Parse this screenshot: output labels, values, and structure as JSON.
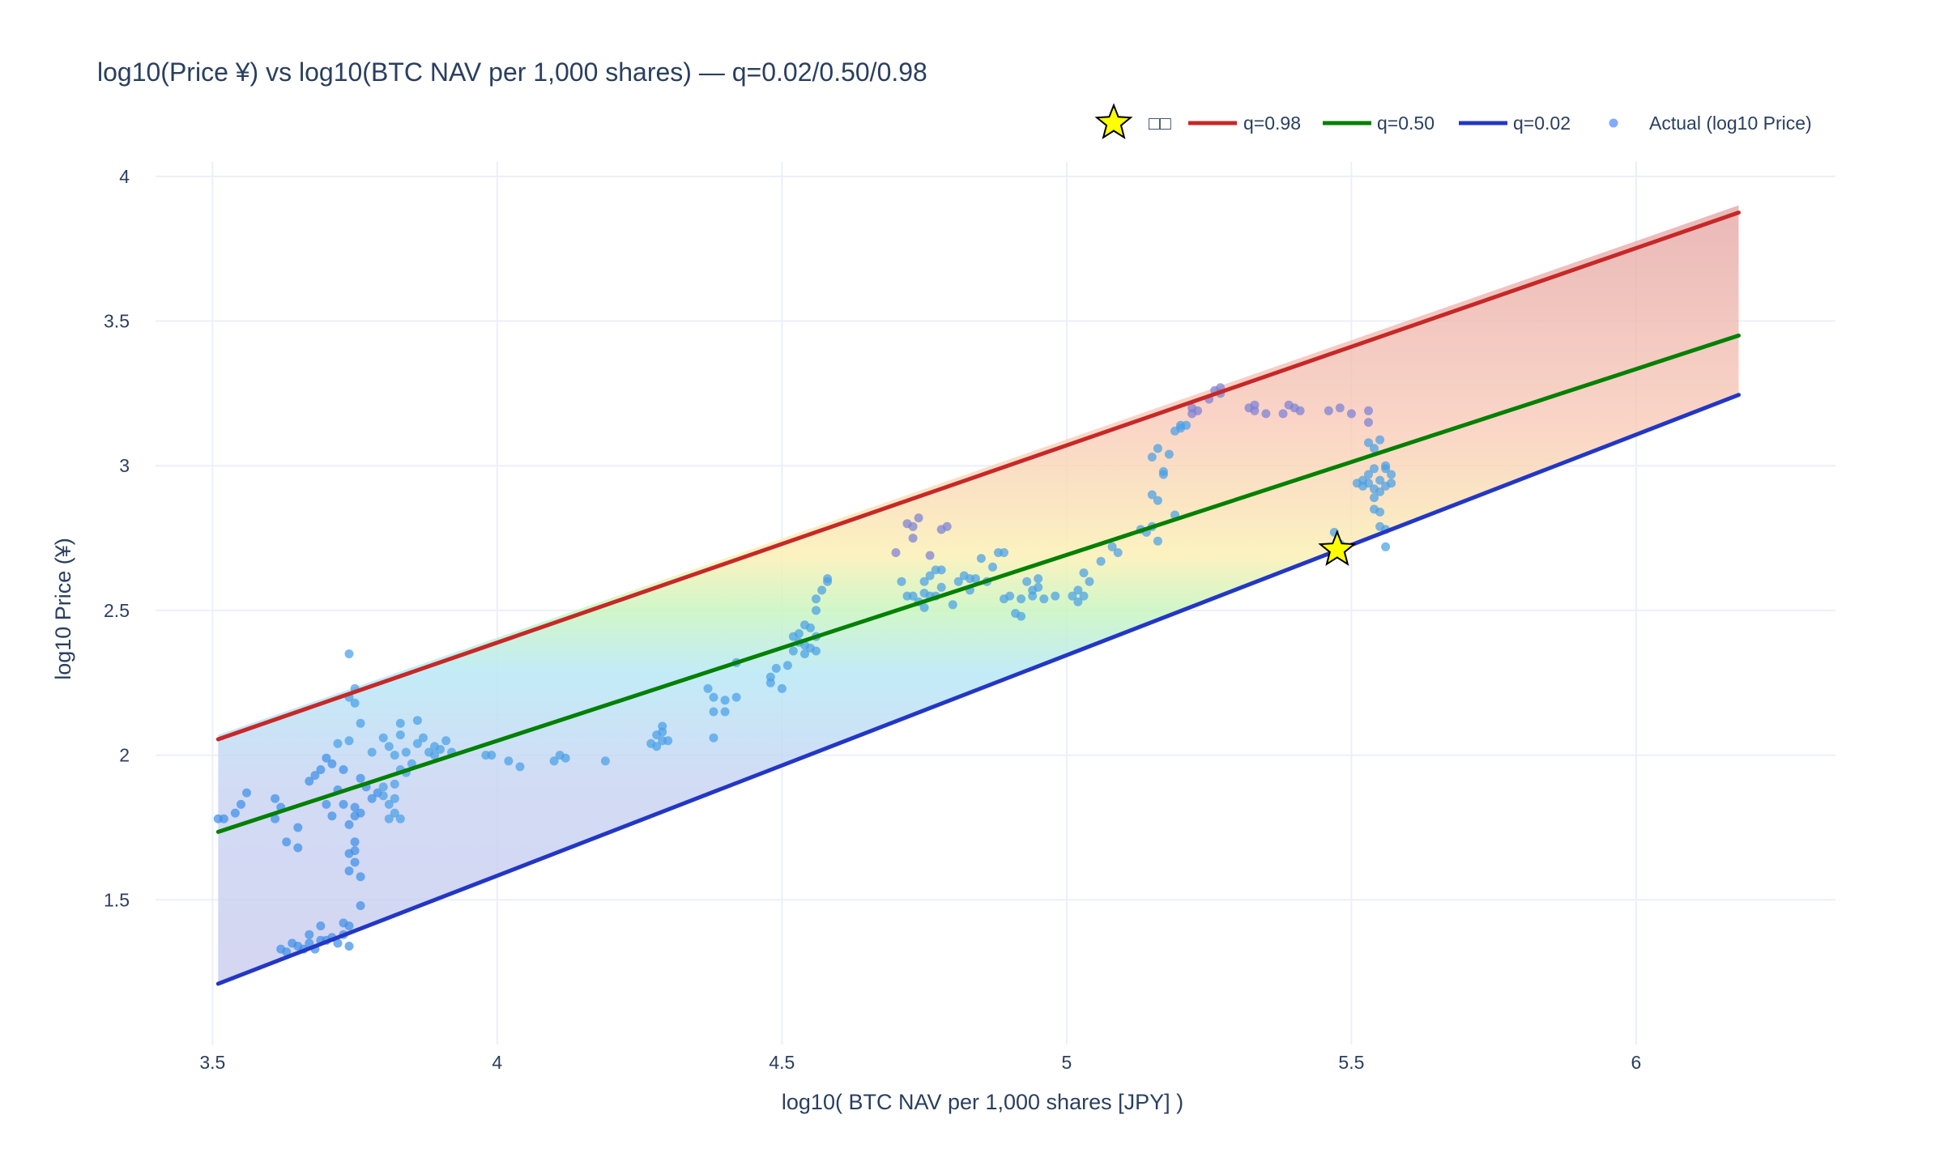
{
  "chart_data": {
    "type": "scatter",
    "title": "log10(Price ¥) vs log10(BTC NAV per 1,000 shares) — q=0.02/0.50/0.98",
    "xlabel": "log10( BTC NAV per 1,000 shares [JPY] )",
    "ylabel": "log10 Price (¥)",
    "xlim": [
      3.4,
      6.35
    ],
    "ylim": [
      1.0,
      4.05
    ],
    "xticks": [
      3.5,
      4,
      4.5,
      5,
      5.5,
      6
    ],
    "xtick_labels": [
      "3.5",
      "4",
      "4.5",
      "5",
      "5.5",
      "6"
    ],
    "yticks": [
      1.5,
      2,
      2.5,
      3,
      3.5,
      4
    ],
    "ytick_labels": [
      "1.5",
      "2",
      "2.5",
      "3",
      "3.5",
      "4"
    ],
    "grid": true,
    "legend_position": "top-right",
    "legend": [
      {
        "name": "□□",
        "kind": "star",
        "color": "#ffff00"
      },
      {
        "name": "q=0.98",
        "kind": "line",
        "color": "#c62828"
      },
      {
        "name": "q=0.50",
        "kind": "line",
        "color": "#008000"
      },
      {
        "name": "q=0.02",
        "kind": "line",
        "color": "#2337c4"
      },
      {
        "name": "Actual (log10 Price)",
        "kind": "marker",
        "color": "#6395ff"
      }
    ],
    "band": {
      "x": [
        3.51,
        6.18
      ],
      "y_low": [
        1.21,
        3.24
      ],
      "y_high": [
        2.07,
        3.9
      ]
    },
    "lines": [
      {
        "name": "q=0.98",
        "color": "#c62828",
        "x": [
          3.51,
          6.18
        ],
        "y": [
          2.055,
          3.875
        ]
      },
      {
        "name": "q=0.50",
        "color": "#008000",
        "x": [
          3.51,
          6.18
        ],
        "y": [
          1.735,
          3.45
        ]
      },
      {
        "name": "q=0.02",
        "color": "#2337c4",
        "x": [
          3.51,
          6.18
        ],
        "y": [
          1.21,
          3.245
        ]
      }
    ],
    "current_point": {
      "name": "□□",
      "x": 5.475,
      "y": 2.71
    },
    "series": [
      {
        "name": "Actual (log10 Price)",
        "points": [
          [
            3.51,
            1.78
          ],
          [
            3.52,
            1.78
          ],
          [
            3.54,
            1.8
          ],
          [
            3.55,
            1.83
          ],
          [
            3.56,
            1.87
          ],
          [
            3.61,
            1.85
          ],
          [
            3.61,
            1.78
          ],
          [
            3.62,
            1.82
          ],
          [
            3.63,
            1.7
          ],
          [
            3.65,
            1.68
          ],
          [
            3.65,
            1.75
          ],
          [
            3.62,
            1.33
          ],
          [
            3.63,
            1.32
          ],
          [
            3.64,
            1.35
          ],
          [
            3.65,
            1.34
          ],
          [
            3.66,
            1.33
          ],
          [
            3.67,
            1.35
          ],
          [
            3.67,
            1.38
          ],
          [
            3.68,
            1.33
          ],
          [
            3.69,
            1.36
          ],
          [
            3.69,
            1.41
          ],
          [
            3.7,
            1.36
          ],
          [
            3.71,
            1.37
          ],
          [
            3.72,
            1.35
          ],
          [
            3.73,
            1.38
          ],
          [
            3.73,
            1.42
          ],
          [
            3.74,
            1.41
          ],
          [
            3.74,
            1.34
          ],
          [
            3.76,
            1.48
          ],
          [
            3.67,
            1.91
          ],
          [
            3.68,
            1.93
          ],
          [
            3.69,
            1.95
          ],
          [
            3.7,
            1.99
          ],
          [
            3.71,
            1.97
          ],
          [
            3.72,
            2.04
          ],
          [
            3.73,
            1.95
          ],
          [
            3.74,
            2.05
          ],
          [
            3.7,
            1.83
          ],
          [
            3.71,
            1.79
          ],
          [
            3.72,
            1.88
          ],
          [
            3.73,
            1.83
          ],
          [
            3.74,
            1.76
          ],
          [
            3.75,
            1.79
          ],
          [
            3.75,
            1.82
          ],
          [
            3.76,
            1.8
          ],
          [
            3.77,
            1.89
          ],
          [
            3.76,
            1.92
          ],
          [
            3.74,
            1.66
          ],
          [
            3.75,
            1.7
          ],
          [
            3.75,
            1.63
          ],
          [
            3.74,
            1.6
          ],
          [
            3.75,
            1.67
          ],
          [
            3.76,
            1.58
          ],
          [
            3.74,
            2.35
          ],
          [
            3.75,
            2.23
          ],
          [
            3.75,
            2.18
          ],
          [
            3.76,
            2.11
          ],
          [
            3.74,
            2.2
          ],
          [
            3.78,
            1.85
          ],
          [
            3.79,
            1.87
          ],
          [
            3.8,
            1.89
          ],
          [
            3.8,
            1.86
          ],
          [
            3.81,
            1.83
          ],
          [
            3.82,
            1.8
          ],
          [
            3.81,
            1.78
          ],
          [
            3.82,
            1.85
          ],
          [
            3.83,
            1.78
          ],
          [
            3.84,
            1.94
          ],
          [
            3.82,
            1.9
          ],
          [
            3.83,
            1.95
          ],
          [
            3.78,
            2.01
          ],
          [
            3.8,
            2.06
          ],
          [
            3.81,
            2.03
          ],
          [
            3.82,
            2.0
          ],
          [
            3.83,
            2.07
          ],
          [
            3.83,
            2.11
          ],
          [
            3.84,
            2.01
          ],
          [
            3.85,
            1.97
          ],
          [
            3.86,
            2.04
          ],
          [
            3.86,
            2.12
          ],
          [
            3.87,
            2.06
          ],
          [
            3.88,
            2.01
          ],
          [
            3.89,
            2.0
          ],
          [
            3.89,
            2.03
          ],
          [
            3.9,
            2.02
          ],
          [
            3.91,
            2.05
          ],
          [
            3.92,
            2.01
          ],
          [
            3.98,
            2.0
          ],
          [
            3.99,
            2.0
          ],
          [
            4.02,
            1.98
          ],
          [
            4.04,
            1.96
          ],
          [
            4.1,
            1.98
          ],
          [
            4.11,
            2.0
          ],
          [
            4.12,
            1.99
          ],
          [
            4.19,
            1.98
          ],
          [
            4.27,
            2.04
          ],
          [
            4.28,
            2.07
          ],
          [
            4.28,
            2.03
          ],
          [
            4.29,
            2.05
          ],
          [
            4.29,
            2.1
          ],
          [
            4.3,
            2.05
          ],
          [
            4.29,
            2.08
          ],
          [
            4.37,
            2.23
          ],
          [
            4.38,
            2.2
          ],
          [
            4.38,
            2.15
          ],
          [
            4.38,
            2.06
          ],
          [
            4.4,
            2.19
          ],
          [
            4.4,
            2.15
          ],
          [
            4.42,
            2.2
          ],
          [
            4.42,
            2.32
          ],
          [
            4.48,
            2.27
          ],
          [
            4.48,
            2.25
          ],
          [
            4.49,
            2.3
          ],
          [
            4.5,
            2.23
          ],
          [
            4.51,
            2.31
          ],
          [
            4.52,
            2.36
          ],
          [
            4.52,
            2.41
          ],
          [
            4.53,
            2.39
          ],
          [
            4.53,
            2.42
          ],
          [
            4.54,
            2.35
          ],
          [
            4.54,
            2.38
          ],
          [
            4.55,
            2.37
          ],
          [
            4.55,
            2.44
          ],
          [
            4.56,
            2.41
          ],
          [
            4.56,
            2.5
          ],
          [
            4.56,
            2.54
          ],
          [
            4.57,
            2.57
          ],
          [
            4.58,
            2.61
          ],
          [
            4.58,
            2.6
          ],
          [
            4.54,
            2.45
          ],
          [
            4.56,
            2.36
          ],
          [
            4.7,
            2.7
          ],
          [
            4.72,
            2.8
          ],
          [
            4.73,
            2.79
          ],
          [
            4.73,
            2.75
          ],
          [
            4.74,
            2.82
          ],
          [
            4.75,
            2.6
          ],
          [
            4.76,
            2.62
          ],
          [
            4.76,
            2.69
          ],
          [
            4.77,
            2.64
          ],
          [
            4.78,
            2.64
          ],
          [
            4.78,
            2.78
          ],
          [
            4.79,
            2.79
          ],
          [
            4.71,
            2.6
          ],
          [
            4.72,
            2.55
          ],
          [
            4.73,
            2.55
          ],
          [
            4.74,
            2.53
          ],
          [
            4.75,
            2.56
          ],
          [
            4.75,
            2.51
          ],
          [
            4.76,
            2.55
          ],
          [
            4.77,
            2.55
          ],
          [
            4.78,
            2.58
          ],
          [
            4.8,
            2.52
          ],
          [
            4.81,
            2.6
          ],
          [
            4.82,
            2.62
          ],
          [
            4.83,
            2.57
          ],
          [
            4.83,
            2.61
          ],
          [
            4.84,
            2.61
          ],
          [
            4.85,
            2.68
          ],
          [
            4.86,
            2.6
          ],
          [
            4.87,
            2.65
          ],
          [
            4.88,
            2.7
          ],
          [
            4.89,
            2.7
          ],
          [
            4.89,
            2.54
          ],
          [
            4.9,
            2.55
          ],
          [
            4.91,
            2.49
          ],
          [
            4.92,
            2.54
          ],
          [
            4.92,
            2.48
          ],
          [
            4.93,
            2.6
          ],
          [
            4.94,
            2.57
          ],
          [
            4.94,
            2.55
          ],
          [
            4.95,
            2.61
          ],
          [
            4.95,
            2.58
          ],
          [
            4.96,
            2.54
          ],
          [
            4.98,
            2.55
          ],
          [
            5.01,
            2.55
          ],
          [
            5.02,
            2.57
          ],
          [
            5.02,
            2.53
          ],
          [
            5.03,
            2.55
          ],
          [
            5.03,
            2.63
          ],
          [
            5.04,
            2.6
          ],
          [
            5.06,
            2.67
          ],
          [
            5.08,
            2.72
          ],
          [
            5.09,
            2.7
          ],
          [
            5.13,
            2.78
          ],
          [
            5.14,
            2.77
          ],
          [
            5.15,
            2.79
          ],
          [
            5.16,
            2.74
          ],
          [
            5.19,
            2.83
          ],
          [
            5.15,
            2.9
          ],
          [
            5.15,
            3.03
          ],
          [
            5.16,
            3.06
          ],
          [
            5.16,
            2.88
          ],
          [
            5.17,
            2.98
          ],
          [
            5.17,
            2.97
          ],
          [
            5.18,
            3.04
          ],
          [
            5.19,
            3.12
          ],
          [
            5.2,
            3.14
          ],
          [
            5.2,
            3.13
          ],
          [
            5.21,
            3.14
          ],
          [
            5.22,
            3.2
          ],
          [
            5.22,
            3.18
          ],
          [
            5.23,
            3.19
          ],
          [
            5.25,
            3.23
          ],
          [
            5.26,
            3.26
          ],
          [
            5.27,
            3.27
          ],
          [
            5.27,
            3.25
          ],
          [
            5.32,
            3.2
          ],
          [
            5.33,
            3.21
          ],
          [
            5.33,
            3.19
          ],
          [
            5.35,
            3.18
          ],
          [
            5.38,
            3.18
          ],
          [
            5.39,
            3.21
          ],
          [
            5.4,
            3.2
          ],
          [
            5.41,
            3.19
          ],
          [
            5.46,
            3.19
          ],
          [
            5.48,
            3.2
          ],
          [
            5.5,
            3.18
          ],
          [
            5.53,
            3.19
          ],
          [
            5.51,
            2.94
          ],
          [
            5.52,
            2.95
          ],
          [
            5.52,
            2.93
          ],
          [
            5.53,
            2.94
          ],
          [
            5.53,
            2.97
          ],
          [
            5.54,
            2.92
          ],
          [
            5.54,
            2.99
          ],
          [
            5.55,
            2.95
          ],
          [
            5.55,
            2.91
          ],
          [
            5.54,
            2.85
          ],
          [
            5.55,
            2.84
          ],
          [
            5.55,
            2.79
          ],
          [
            5.56,
            2.78
          ],
          [
            5.56,
            2.72
          ],
          [
            5.55,
            3.09
          ],
          [
            5.54,
            3.06
          ],
          [
            5.53,
            3.15
          ],
          [
            5.53,
            3.08
          ],
          [
            5.56,
            2.99
          ],
          [
            5.57,
            2.97
          ],
          [
            5.57,
            2.94
          ],
          [
            5.56,
            3.0
          ],
          [
            5.54,
            2.89
          ],
          [
            5.56,
            2.93
          ],
          [
            5.47,
            2.77
          ],
          [
            5.48,
            2.73
          ]
        ]
      }
    ]
  }
}
